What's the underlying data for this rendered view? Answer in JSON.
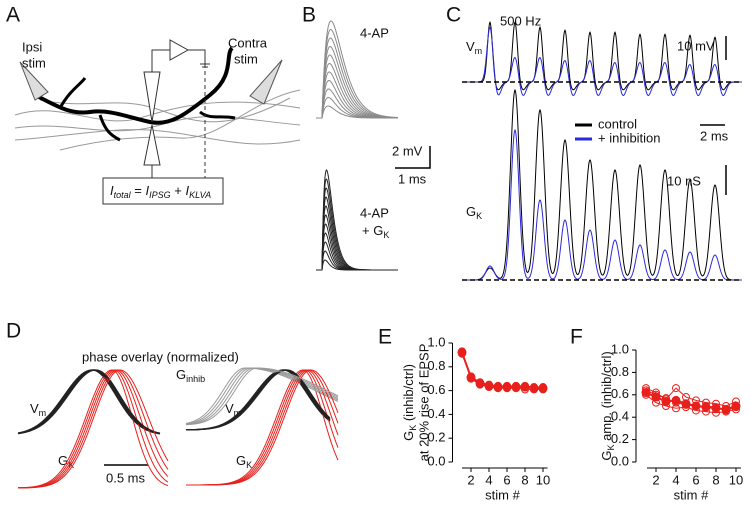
{
  "figure": {
    "A": {
      "label": "A",
      "ipsi": [
        "Ipsi",
        "stim"
      ],
      "contra": [
        "Contra",
        "stim"
      ],
      "equation": [
        "I",
        "total",
        " = ",
        "I",
        "IPSG",
        " + ",
        "I",
        "KLVA"
      ]
    },
    "B": {
      "label": "B",
      "top": "4-AP",
      "bottom": [
        "4-AP",
        "+ G",
        "K"
      ],
      "scale_y": "2 mV",
      "scale_x": "1 ms"
    },
    "C": {
      "label": "C",
      "freq": "500 Hz",
      "vm": [
        "V",
        "m"
      ],
      "scale_vm": "10 mV",
      "scale_t": "2 ms",
      "legend": [
        "control",
        "+ inhibition"
      ],
      "legend_colors": [
        "#000000",
        "#2a2ad8"
      ],
      "scale_g": "10 nS",
      "gk": [
        "G",
        "K"
      ]
    },
    "D": {
      "label": "D",
      "title": "phase overlay (normalized)",
      "vm": [
        "V",
        "m"
      ],
      "gk": [
        "G",
        "K"
      ],
      "scale_t": "0.5 ms",
      "ginhib": [
        "G",
        "inhib"
      ]
    }
  },
  "chart_data": [
    {
      "type": "line",
      "label": "E",
      "ylabel": [
        "G",
        "K",
        " (inhib/ctrl)"
      ],
      "ylabel2": "at 20% rise of EPSP",
      "xlabel": "stim #",
      "x": [
        1,
        2,
        3,
        4,
        5,
        6,
        7,
        8,
        9,
        10
      ],
      "series": [
        {
          "color": "#e8201c",
          "marker": "filled",
          "values": [
            0.92,
            0.71,
            0.66,
            0.64,
            0.63,
            0.63,
            0.63,
            0.63,
            0.62,
            0.62
          ]
        },
        {
          "color": "#e8201c",
          "marker": "open",
          "values": [
            0.91,
            0.72,
            0.67,
            0.65,
            0.64,
            0.64,
            0.64,
            0.64,
            0.63,
            0.63
          ]
        },
        {
          "color": "#e8201c",
          "marker": "open",
          "values": [
            0.93,
            0.7,
            0.65,
            0.63,
            0.62,
            0.62,
            0.62,
            0.61,
            0.61,
            0.61
          ]
        }
      ],
      "xlim": [
        0.5,
        10.5
      ],
      "xticks": [
        2,
        4,
        6,
        8,
        10
      ],
      "ylim": [
        0,
        1
      ],
      "yticks": [
        {
          "value": 0,
          "label": "0.0"
        },
        {
          "value": 0.2,
          "label": "0.2"
        },
        {
          "value": 0.4,
          "label": "0.4"
        },
        {
          "value": 0.6,
          "label": "0.6"
        },
        {
          "value": 0.8,
          "label": "0.8"
        },
        {
          "value": 1,
          "label": "1.0"
        }
      ]
    },
    {
      "type": "line",
      "label": "F",
      "ylabel": [
        "G",
        "K",
        " amp. (inhib/ctrl)"
      ],
      "xlabel": "stim #",
      "x": [
        1,
        2,
        3,
        4,
        5,
        6,
        7,
        8,
        9,
        10
      ],
      "series": [
        {
          "color": "#e8201c",
          "marker": "filled",
          "values": [
            0.62,
            0.58,
            0.54,
            0.55,
            0.52,
            0.5,
            0.49,
            0.48,
            0.47,
            0.5
          ]
        },
        {
          "color": "#e8201c",
          "marker": "open",
          "values": [
            0.66,
            0.62,
            0.56,
            0.66,
            0.58,
            0.55,
            0.53,
            0.52,
            0.5,
            0.54
          ]
        },
        {
          "color": "#e8201c",
          "marker": "open",
          "values": [
            0.6,
            0.53,
            0.5,
            0.48,
            0.49,
            0.46,
            0.45,
            0.44,
            0.45,
            0.47
          ]
        },
        {
          "color": "#e8201c",
          "marker": "open",
          "values": [
            0.64,
            0.6,
            0.57,
            0.53,
            0.51,
            0.5,
            0.5,
            0.49,
            0.46,
            0.49
          ]
        }
      ],
      "xlim": [
        0.5,
        10.5
      ],
      "xticks": [
        2,
        4,
        6,
        8,
        10
      ],
      "ylim": [
        0,
        1
      ],
      "yticks": [
        {
          "value": 0,
          "label": "0.0"
        },
        {
          "value": 0.2,
          "label": "0.2"
        },
        {
          "value": 0.4,
          "label": "0.4"
        },
        {
          "value": 0.6,
          "label": "0.6"
        },
        {
          "value": 0.8,
          "label": "0.8"
        },
        {
          "value": 1,
          "label": "1.0"
        }
      ]
    }
  ]
}
